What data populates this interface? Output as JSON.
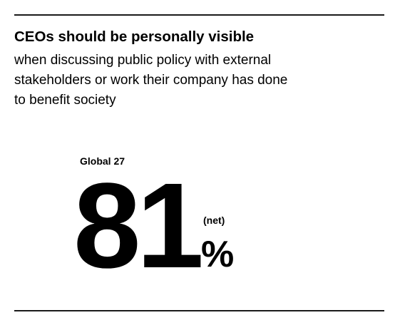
{
  "headline": "CEOs should be personally visible",
  "subtext": "when discussing public policy with external\nstakeholders or work their company has done\nto benefit society",
  "stat": {
    "region_label": "Global 27",
    "value": "81",
    "qualifier": "(net)",
    "unit": "%"
  }
}
